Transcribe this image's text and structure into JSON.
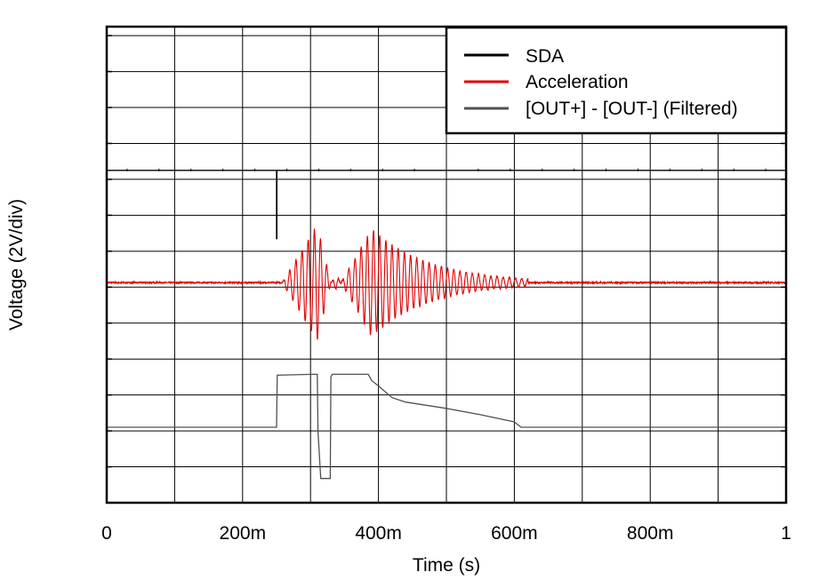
{
  "chart_data": {
    "type": "line",
    "xlabel": "Time (s)",
    "ylabel": "Voltage (2V/div)",
    "x_ticks": [
      {
        "value": 0,
        "label": "0"
      },
      {
        "value": 0.2,
        "label": "200m"
      },
      {
        "value": 0.4,
        "label": "400m"
      },
      {
        "value": 0.6,
        "label": "600m"
      },
      {
        "value": 0.8,
        "label": "800m"
      },
      {
        "value": 1.0,
        "label": "1"
      }
    ],
    "xlim": [
      0,
      1
    ],
    "ylim": [
      0,
      26.5
    ],
    "y_divisions": 13.25,
    "grid": true,
    "legend_position": "top-right",
    "series": [
      {
        "name": "SDA",
        "color": "#000000",
        "points": [
          [
            0,
            18.5
          ],
          [
            0.25,
            18.5
          ],
          [
            0.25,
            18.5
          ],
          [
            0.25,
            14.7
          ],
          [
            0.2505,
            14.7
          ],
          [
            0.2505,
            18.5
          ],
          [
            1.0,
            18.5
          ]
        ]
      },
      {
        "name": "Acceleration",
        "color": "#e00000",
        "baseline": 12.25,
        "bursts": [
          {
            "start": 0.258,
            "end": 0.33,
            "peak": 0.31,
            "amplitude": 3.2,
            "freq_hz": 110
          },
          {
            "start": 0.33,
            "end": 0.345,
            "peak": 0.338,
            "amplitude": 0.4,
            "freq_hz": 110
          },
          {
            "start": 0.345,
            "end": 0.62,
            "peak": 0.39,
            "amplitude": 3.0,
            "freq_hz": 110,
            "decay_s": 0.085
          }
        ]
      },
      {
        "name": "[OUT+] - [OUT-] (Filtered)",
        "color": "#505050",
        "points": [
          [
            0,
            4.2
          ],
          [
            0.25,
            4.2
          ],
          [
            0.251,
            7.1
          ],
          [
            0.305,
            7.15
          ],
          [
            0.31,
            7.15
          ],
          [
            0.311,
            3.95
          ],
          [
            0.315,
            1.35
          ],
          [
            0.329,
            1.35
          ],
          [
            0.33,
            7.0
          ],
          [
            0.332,
            7.15
          ],
          [
            0.385,
            7.15
          ],
          [
            0.39,
            6.8
          ],
          [
            0.4,
            6.5
          ],
          [
            0.42,
            5.85
          ],
          [
            0.44,
            5.6
          ],
          [
            0.5,
            5.25
          ],
          [
            0.55,
            4.9
          ],
          [
            0.6,
            4.5
          ],
          [
            0.61,
            4.2
          ],
          [
            1.0,
            4.2
          ]
        ]
      }
    ]
  }
}
